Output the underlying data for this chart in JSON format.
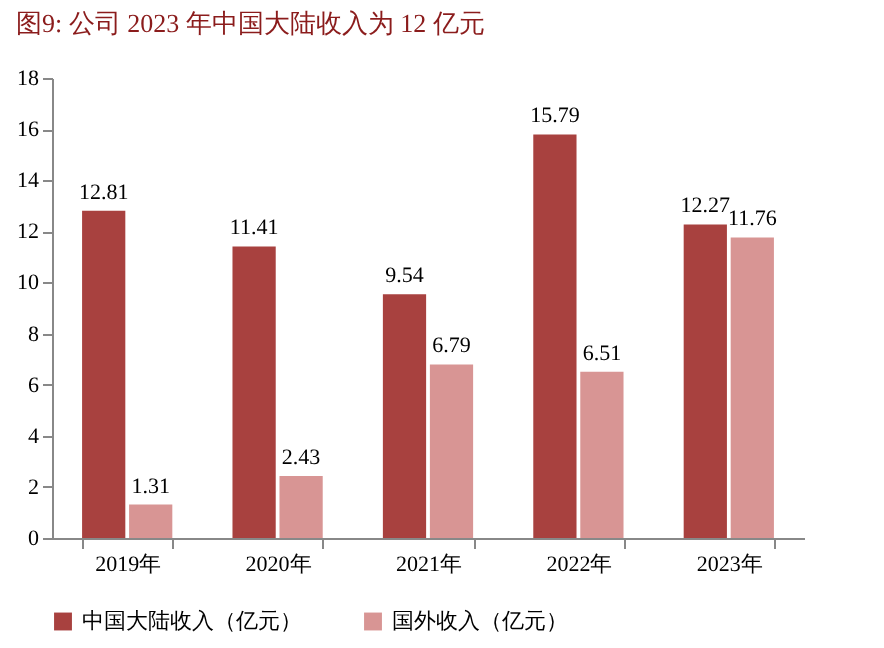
{
  "chart_data": {
    "type": "bar",
    "title": "图9:   公司 2023 年中国大陆收入为 12 亿元",
    "categories": [
      "2019年",
      "2020年",
      "2021年",
      "2022年",
      "2023年"
    ],
    "series": [
      {
        "name": "中国大陆收入（亿元）",
        "color": "#a8413f",
        "values": [
          12.81,
          11.41,
          9.54,
          15.79,
          12.27
        ]
      },
      {
        "name": "国外收入（亿元）",
        "color": "#d89594",
        "values": [
          1.31,
          2.43,
          6.79,
          6.51,
          11.76
        ]
      }
    ],
    "ylim": [
      0,
      18
    ],
    "yticks": [
      0,
      2,
      4,
      6,
      8,
      10,
      12,
      14,
      16,
      18
    ],
    "grid": false,
    "legend": "bottom",
    "data_labels": true
  }
}
